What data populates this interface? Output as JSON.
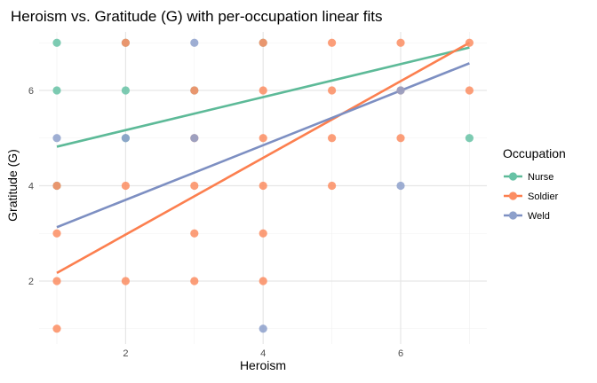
{
  "chart_data": {
    "type": "scatter",
    "title": "Heroism vs. Gratitude (G) with per-occupation linear fits",
    "xlabel": "Heroism",
    "ylabel": "Gratitude (G)",
    "xlim": [
      0.8,
      7.3
    ],
    "ylim": [
      0.7,
      7.4
    ],
    "xticks": [
      2,
      4,
      6
    ],
    "yticks": [
      2,
      4,
      6
    ],
    "grid": true,
    "legend": {
      "title": "Occupation",
      "placement": "right"
    },
    "series": [
      {
        "name": "Nurse",
        "color": "#66c2a5",
        "line_color": "#5dba98",
        "points": [
          [
            1,
            7
          ],
          [
            2,
            7
          ],
          [
            4,
            7
          ],
          [
            1,
            6
          ],
          [
            2,
            6
          ],
          [
            3,
            6
          ],
          [
            2,
            5
          ],
          [
            7,
            5
          ],
          [
            1,
            4
          ]
        ],
        "fit": [
          [
            1,
            4.82
          ],
          [
            7,
            6.9
          ]
        ]
      },
      {
        "name": "Soldier",
        "color": "#fc8d62",
        "line_color": "#fc7f4f",
        "points": [
          [
            2,
            7
          ],
          [
            4,
            7
          ],
          [
            5,
            7
          ],
          [
            6,
            7
          ],
          [
            7,
            7
          ],
          [
            3,
            6
          ],
          [
            4,
            6
          ],
          [
            5,
            6
          ],
          [
            6,
            6
          ],
          [
            7,
            6
          ],
          [
            3,
            5
          ],
          [
            4,
            5
          ],
          [
            5,
            5
          ],
          [
            6,
            5
          ],
          [
            1,
            4
          ],
          [
            2,
            4
          ],
          [
            3,
            4
          ],
          [
            4,
            4
          ],
          [
            5,
            4
          ],
          [
            1,
            3
          ],
          [
            3,
            3
          ],
          [
            4,
            3
          ],
          [
            1,
            2
          ],
          [
            2,
            2
          ],
          [
            3,
            2
          ],
          [
            4,
            2
          ],
          [
            1,
            1
          ]
        ],
        "fit": [
          [
            1,
            2.17
          ],
          [
            7,
            7.0
          ]
        ]
      },
      {
        "name": "Weld",
        "color": "#8da0cb",
        "line_color": "#7d8fc2",
        "points": [
          [
            3,
            7
          ],
          [
            6,
            6
          ],
          [
            1,
            5
          ],
          [
            2,
            5
          ],
          [
            3,
            5
          ],
          [
            6,
            4
          ],
          [
            4,
            1
          ]
        ],
        "fit": [
          [
            1,
            3.13
          ],
          [
            7,
            6.57
          ]
        ]
      }
    ]
  }
}
